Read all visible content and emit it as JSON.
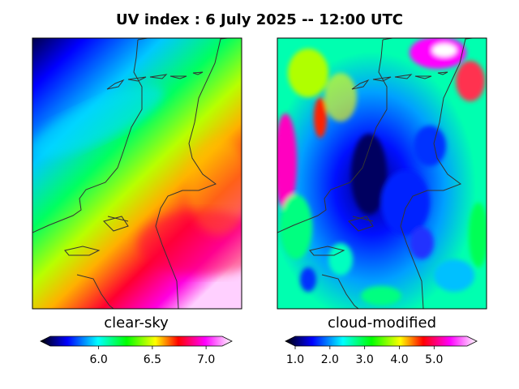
{
  "title": "UV index :  6 July 2025  --  12:00 UTC",
  "panels": [
    {
      "label": "clear-sky",
      "colorbar": {
        "ticks": [
          "6.0",
          "6.5",
          "7.0"
        ],
        "tick_values": [
          6.0,
          6.5,
          7.0
        ],
        "range": [
          5.55,
          7.15
        ]
      }
    },
    {
      "label": "cloud-modified",
      "colorbar": {
        "ticks": [
          "1.0",
          "2.0",
          "3.0",
          "4.0",
          "5.0"
        ],
        "tick_values": [
          1.0,
          2.0,
          3.0,
          4.0,
          5.0
        ],
        "range": [
          1.0,
          5.95
        ]
      }
    }
  ],
  "colors": {
    "scale": [
      "#000000",
      "#0000ff",
      "#00ffff",
      "#00ff00",
      "#ffff00",
      "#ff0000",
      "#ff00ff",
      "#ffffff"
    ],
    "coast": "#333333"
  }
}
